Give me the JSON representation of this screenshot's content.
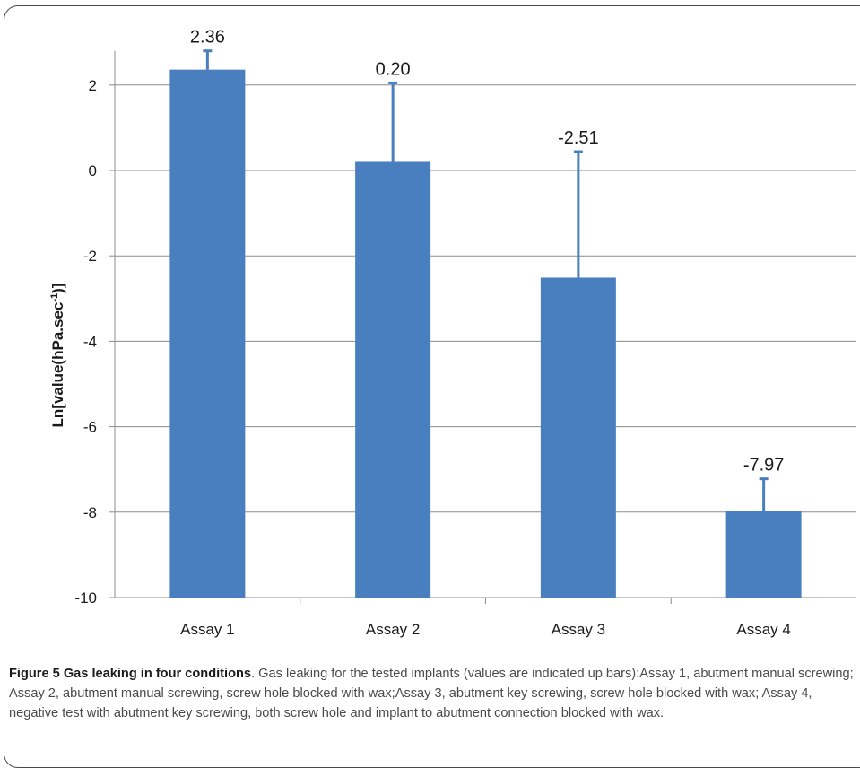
{
  "chart_data": {
    "type": "bar",
    "categories": [
      "Assay 1",
      "Assay 2",
      "Assay 3",
      "Assay 4"
    ],
    "values": [
      2.36,
      0.2,
      -2.51,
      -7.97
    ],
    "value_labels": [
      "2.36",
      "0.20",
      "-2.51",
      "-7.97"
    ],
    "error_upper": [
      0.44,
      1.85,
      2.95,
      0.75
    ],
    "ylabel_main": "Ln[value(hPa.sec",
    "ylabel_sup": "-1",
    "ylabel_end": ")]",
    "ylim": [
      -10,
      2.8
    ],
    "yticks": [
      2,
      0,
      -2,
      -4,
      -6,
      -8,
      -10
    ],
    "grid": true,
    "bar_color": "#4a7fbf",
    "grid_color": "#8c8c8c"
  },
  "caption": {
    "title": "Figure 5 Gas leaking in four conditions",
    "text": ". Gas leaking for the tested implants (values are indicated up bars):Assay 1, abutment manual screwing; Assay 2, abutment manual screwing, screw hole blocked with wax;Assay 3, abutment key screwing, screw hole blocked with wax; Assay 4, negative test with abutment key screwing, both screw hole and implant to abutment connection blocked with wax."
  }
}
